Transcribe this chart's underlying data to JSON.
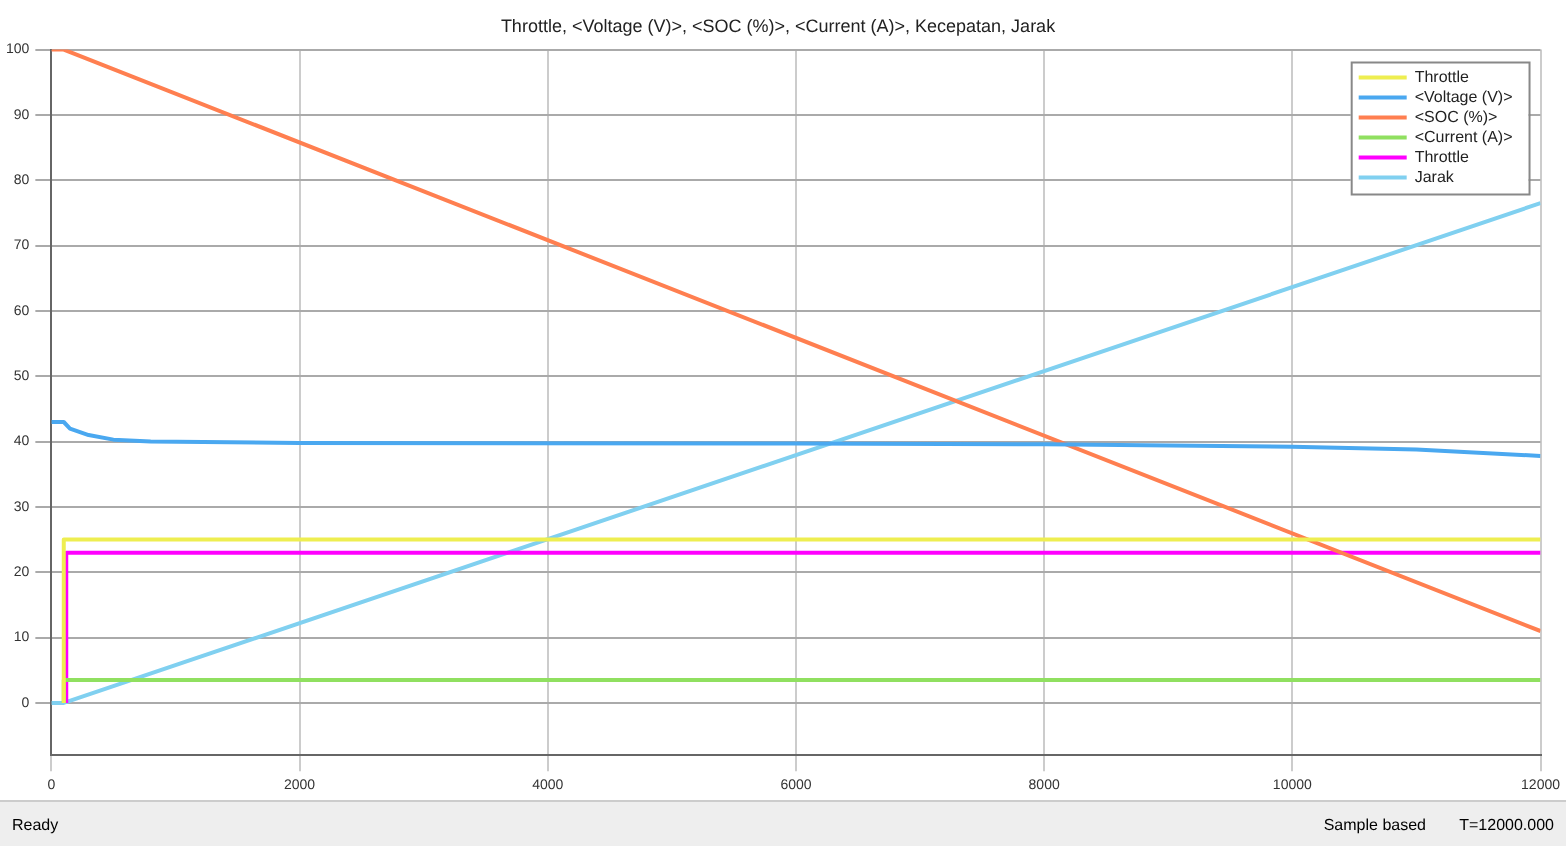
{
  "chart_data": {
    "type": "line",
    "title": "Throttle, <Voltage (V)>, <SOC (%)>, <Current (A)>, Kecepatan, Jarak",
    "series": [
      {
        "name": "Throttle",
        "color": "#eeee50",
        "x": [
          100,
          100,
          12000
        ],
        "values": [
          0,
          25,
          25
        ]
      },
      {
        "name": "<Voltage (V)>",
        "color": "#4aa8f0",
        "x": [
          0,
          100,
          150,
          300,
          500,
          800,
          2000,
          6000,
          8000,
          10000,
          11000,
          12000
        ],
        "values": [
          43,
          43,
          42,
          41,
          40.3,
          40,
          39.8,
          39.7,
          39.6,
          39.2,
          38.8,
          37.8
        ]
      },
      {
        "name": "<SOC (%)>",
        "color": "#ff7f50",
        "x": [
          0,
          100,
          12000
        ],
        "values": [
          100,
          100,
          11
        ]
      },
      {
        "name": "<Current (A)>",
        "color": "#90e060",
        "x": [
          100,
          100,
          12000
        ],
        "values": [
          0,
          3.5,
          3.5
        ]
      },
      {
        "name": "Throttle",
        "color": "#ff00ff",
        "x": [
          120,
          120,
          12000
        ],
        "values": [
          0,
          23,
          23
        ]
      },
      {
        "name": "Jarak",
        "color": "#80d0f0",
        "x": [
          0,
          100,
          12000
        ],
        "values": [
          0,
          0,
          76.5
        ]
      }
    ],
    "xlim": [
      0,
      12000
    ],
    "xticks": [
      0,
      2000,
      4000,
      6000,
      8000,
      10000,
      12000
    ],
    "ylim": [
      -8,
      100
    ],
    "yticks": [
      0,
      10,
      20,
      30,
      40,
      50,
      60,
      70,
      80,
      90,
      100
    ],
    "grid": true,
    "legend": "top right",
    "marker": "none",
    "line_style": "solid",
    "annotations": [
      "Ready",
      "Sample based",
      "T=12000.000"
    ]
  }
}
